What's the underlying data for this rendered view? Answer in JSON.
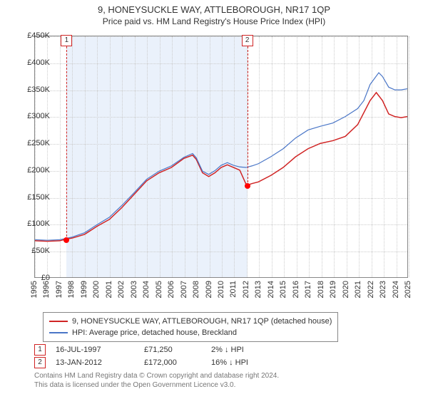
{
  "titles": {
    "main": "9, HONEYSUCKLE WAY, ATTLEBOROUGH, NR17 1QP",
    "sub": "Price paid vs. HM Land Registry's House Price Index (HPI)"
  },
  "chart": {
    "type": "line",
    "background_color": "#ffffff",
    "grid_color": "#cccccc",
    "border_color": "#888888",
    "band_color": "#eaf1fb",
    "yaxis": {
      "min": 0,
      "max": 450000,
      "tick_step": 50000,
      "labels": [
        "£0",
        "£50K",
        "£100K",
        "£150K",
        "£200K",
        "£250K",
        "£300K",
        "£350K",
        "£400K",
        "£450K"
      ],
      "label_fontsize": 11
    },
    "xaxis": {
      "min": 1995,
      "max": 2025,
      "ticks": [
        1995,
        1996,
        1997,
        1998,
        1999,
        2000,
        2001,
        2002,
        2003,
        2004,
        2005,
        2006,
        2007,
        2008,
        2009,
        2010,
        2011,
        2012,
        2013,
        2014,
        2015,
        2016,
        2017,
        2018,
        2019,
        2020,
        2021,
        2022,
        2023,
        2024,
        2025
      ],
      "label_fontsize": 11,
      "rotation": -90
    },
    "bands": [
      {
        "from": 1997.54,
        "to": 2012.04
      }
    ],
    "markers": [
      {
        "id": "1",
        "x": 1997.54,
        "y": 71250,
        "dot_color": "#ff0000"
      },
      {
        "id": "2",
        "x": 2012.04,
        "y": 172000,
        "dot_color": "#ff0000"
      }
    ],
    "marker_box_border": "#d02424",
    "series": [
      {
        "name": "property",
        "label": "9, HONEYSUCKLE WAY, ATTLEBOROUGH, NR17 1QP (detached house)",
        "color": "#d02424",
        "line_width": 1.5,
        "points": [
          [
            1995.0,
            68000
          ],
          [
            1996.0,
            67000
          ],
          [
            1997.0,
            68000
          ],
          [
            1997.54,
            71250
          ],
          [
            1998.0,
            73000
          ],
          [
            1999.0,
            80000
          ],
          [
            2000.0,
            95000
          ],
          [
            2001.0,
            108000
          ],
          [
            2002.0,
            130000
          ],
          [
            2003.0,
            155000
          ],
          [
            2004.0,
            180000
          ],
          [
            2005.0,
            195000
          ],
          [
            2006.0,
            205000
          ],
          [
            2007.0,
            222000
          ],
          [
            2007.7,
            228000
          ],
          [
            2008.0,
            220000
          ],
          [
            2008.5,
            195000
          ],
          [
            2009.0,
            188000
          ],
          [
            2009.5,
            195000
          ],
          [
            2010.0,
            205000
          ],
          [
            2010.5,
            210000
          ],
          [
            2011.0,
            205000
          ],
          [
            2011.5,
            200000
          ],
          [
            2012.04,
            172000
          ],
          [
            2012.1,
            172000
          ],
          [
            2012.5,
            175000
          ],
          [
            2013.0,
            178000
          ],
          [
            2014.0,
            190000
          ],
          [
            2015.0,
            205000
          ],
          [
            2016.0,
            225000
          ],
          [
            2017.0,
            240000
          ],
          [
            2018.0,
            250000
          ],
          [
            2019.0,
            255000
          ],
          [
            2020.0,
            263000
          ],
          [
            2021.0,
            285000
          ],
          [
            2022.0,
            330000
          ],
          [
            2022.5,
            345000
          ],
          [
            2023.0,
            330000
          ],
          [
            2023.5,
            305000
          ],
          [
            2024.0,
            300000
          ],
          [
            2024.5,
            298000
          ],
          [
            2025.0,
            300000
          ]
        ]
      },
      {
        "name": "hpi",
        "label": "HPI: Average price, detached house, Breckland",
        "color": "#4a76c7",
        "line_width": 1.2,
        "points": [
          [
            1995.0,
            70000
          ],
          [
            1996.0,
            69000
          ],
          [
            1997.0,
            70000
          ],
          [
            1998.0,
            75000
          ],
          [
            1999.0,
            83000
          ],
          [
            2000.0,
            98000
          ],
          [
            2001.0,
            112000
          ],
          [
            2002.0,
            134000
          ],
          [
            2003.0,
            158000
          ],
          [
            2004.0,
            183000
          ],
          [
            2005.0,
            198000
          ],
          [
            2006.0,
            208000
          ],
          [
            2007.0,
            224000
          ],
          [
            2007.7,
            231000
          ],
          [
            2008.0,
            223000
          ],
          [
            2008.5,
            198000
          ],
          [
            2009.0,
            192000
          ],
          [
            2009.5,
            199000
          ],
          [
            2010.0,
            209000
          ],
          [
            2010.5,
            214000
          ],
          [
            2011.0,
            209000
          ],
          [
            2011.5,
            206000
          ],
          [
            2012.0,
            205000
          ],
          [
            2012.5,
            208000
          ],
          [
            2013.0,
            212000
          ],
          [
            2014.0,
            225000
          ],
          [
            2015.0,
            240000
          ],
          [
            2016.0,
            260000
          ],
          [
            2017.0,
            275000
          ],
          [
            2018.0,
            282000
          ],
          [
            2019.0,
            288000
          ],
          [
            2020.0,
            300000
          ],
          [
            2021.0,
            315000
          ],
          [
            2021.5,
            330000
          ],
          [
            2022.0,
            360000
          ],
          [
            2022.7,
            382000
          ],
          [
            2023.0,
            375000
          ],
          [
            2023.5,
            355000
          ],
          [
            2024.0,
            350000
          ],
          [
            2024.5,
            350000
          ],
          [
            2025.0,
            352000
          ]
        ]
      }
    ]
  },
  "legend": {
    "border_color": "#888888",
    "fontsize": 11
  },
  "sales": [
    {
      "marker": "1",
      "date": "16-JUL-1997",
      "price": "£71,250",
      "diff": "2% ↓ HPI"
    },
    {
      "marker": "2",
      "date": "13-JAN-2012",
      "price": "£172,000",
      "diff": "16% ↓ HPI"
    }
  ],
  "footer": {
    "line1": "Contains HM Land Registry data © Crown copyright and database right 2024.",
    "line2": "This data is licensed under the Open Government Licence v3.0.",
    "color": "#777777",
    "fontsize": 10
  }
}
